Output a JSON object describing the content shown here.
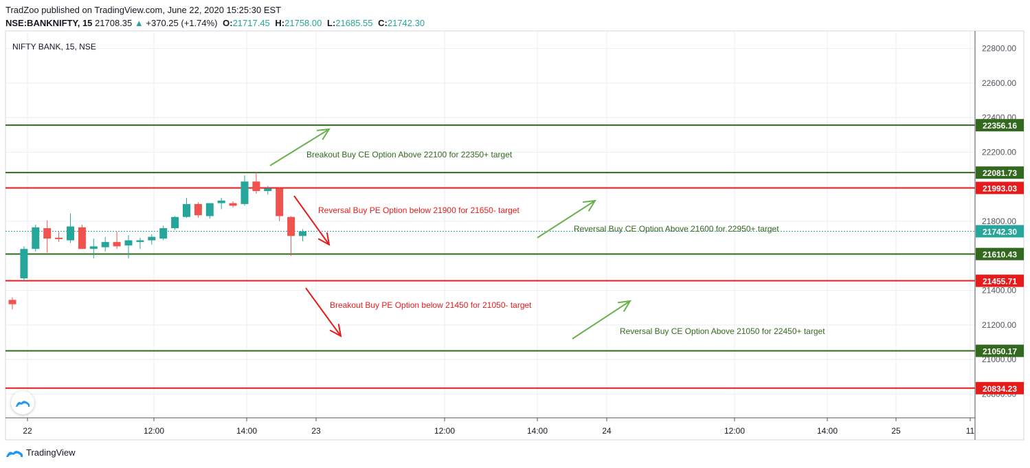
{
  "header": {
    "published_line": "TradZoo published on TradingView.com, June 22, 2020 15:25:30 EST",
    "symbol": "NSE:BANKNIFTY, 15",
    "last": "21708.35",
    "change_arrow": "▲",
    "change": "+370.25 (+1.74%)",
    "o_label": "O:",
    "o_value": "21717.45",
    "h_label": "H:",
    "h_value": "21758.00",
    "l_label": "L:",
    "l_value": "21685.55",
    "c_label": "C:",
    "c_value": "21742.30"
  },
  "legend": {
    "title": "NIFTY BANK, 15, NSE"
  },
  "footer": {
    "brand": "TradingView"
  },
  "colors": {
    "up": "#26a69a",
    "down": "#ef5350",
    "green_line": "#33691e",
    "red_line": "#e51c1c",
    "grid": "#e9eef3"
  },
  "icons": [
    "tradingview-logo-icon",
    "arrow-icon"
  ],
  "chart_data": {
    "type": "candlestick",
    "title": "NIFTY BANK, 15, NSE",
    "ylim": [
      20700,
      22900
    ],
    "y_ticks": [
      "22800.00",
      "22600.00",
      "22400.00",
      "22200.00",
      "22000.00",
      "21800.00",
      "21600.00",
      "21400.00",
      "21200.00",
      "21000.00",
      "20800.00"
    ],
    "x_ticks": [
      "22",
      "12:00",
      "14:00",
      "23",
      "12:00",
      "14:00",
      "24",
      "12:00",
      "14:00",
      "25",
      "11"
    ],
    "grid": true,
    "candles": [
      {
        "o": 21345,
        "h": 21360,
        "l": 21290,
        "c": 21320
      },
      {
        "o": 21470,
        "h": 21655,
        "l": 21450,
        "c": 21640
      },
      {
        "o": 21640,
        "h": 21780,
        "l": 21625,
        "c": 21765
      },
      {
        "o": 21760,
        "h": 21805,
        "l": 21620,
        "c": 21700
      },
      {
        "o": 21705,
        "h": 21740,
        "l": 21680,
        "c": 21700
      },
      {
        "o": 21690,
        "h": 21845,
        "l": 21675,
        "c": 21770
      },
      {
        "o": 21765,
        "h": 21780,
        "l": 21640,
        "c": 21640
      },
      {
        "o": 21640,
        "h": 21700,
        "l": 21585,
        "c": 21655
      },
      {
        "o": 21650,
        "h": 21710,
        "l": 21625,
        "c": 21680
      },
      {
        "o": 21680,
        "h": 21740,
        "l": 21640,
        "c": 21655
      },
      {
        "o": 21660,
        "h": 21720,
        "l": 21585,
        "c": 21690
      },
      {
        "o": 21680,
        "h": 21705,
        "l": 21640,
        "c": 21690
      },
      {
        "o": 21690,
        "h": 21725,
        "l": 21665,
        "c": 21710
      },
      {
        "o": 21700,
        "h": 21775,
        "l": 21690,
        "c": 21760
      },
      {
        "o": 21760,
        "h": 21830,
        "l": 21750,
        "c": 21825
      },
      {
        "o": 21825,
        "h": 21935,
        "l": 21820,
        "c": 21900
      },
      {
        "o": 21900,
        "h": 21910,
        "l": 21820,
        "c": 21835
      },
      {
        "o": 21830,
        "h": 21905,
        "l": 21815,
        "c": 21905
      },
      {
        "o": 21905,
        "h": 21935,
        "l": 21870,
        "c": 21920
      },
      {
        "o": 21905,
        "h": 21915,
        "l": 21880,
        "c": 21890
      },
      {
        "o": 21900,
        "h": 22065,
        "l": 21890,
        "c": 22030
      },
      {
        "o": 22030,
        "h": 22085,
        "l": 21960,
        "c": 21975
      },
      {
        "o": 21975,
        "h": 22005,
        "l": 21955,
        "c": 21990
      },
      {
        "o": 21990,
        "h": 21995,
        "l": 21800,
        "c": 21830
      },
      {
        "o": 21825,
        "h": 21830,
        "l": 21600,
        "c": 21715
      },
      {
        "o": 21715,
        "h": 21755,
        "l": 21685,
        "c": 21742
      }
    ],
    "levels": [
      {
        "value": 22356.16,
        "label": "22356.16",
        "color": "#33691e"
      },
      {
        "value": 22081.73,
        "label": "22081.73",
        "color": "#33691e"
      },
      {
        "value": 21993.03,
        "label": "21993.03",
        "color": "#e51c1c"
      },
      {
        "value": 21742.3,
        "label": "21742.30",
        "color": "#26a69a"
      },
      {
        "value": 21610.43,
        "label": "21610.43",
        "color": "#33691e"
      },
      {
        "value": 21455.71,
        "label": "21455.71",
        "color": "#e51c1c"
      },
      {
        "value": 21050.17,
        "label": "21050.17",
        "color": "#33691e"
      },
      {
        "value": 20834.23,
        "label": "20834.23",
        "color": "#e51c1c"
      }
    ],
    "annotations": [
      {
        "text": "Breakout Buy CE Option Above 22100 for 22350+ target",
        "color": "#33691e"
      },
      {
        "text": "Reversal Buy PE Option below 21900 for 21650- target",
        "color": "#e51c1c"
      },
      {
        "text": "Reversal Buy CE Option Above 21600 for 22950+ target",
        "color": "#33691e"
      },
      {
        "text": "Breakout Buy PE Option below 21450 for 21050- target",
        "color": "#e51c1c"
      },
      {
        "text": "Reversal Buy CE Option Above 21050 for 22450+ target",
        "color": "#33691e"
      }
    ]
  }
}
